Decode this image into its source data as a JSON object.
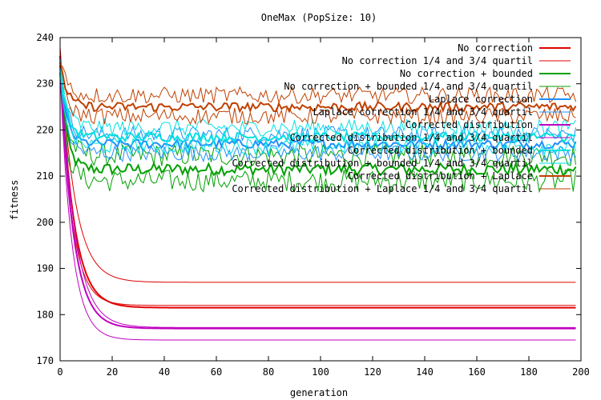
{
  "chart_data": {
    "type": "line",
    "title": "OneMax (PopSize: 10)",
    "xlabel": "generation",
    "ylabel": "fitness",
    "xlim": [
      0,
      200
    ],
    "ylim": [
      170,
      240
    ],
    "xticks": [
      0,
      20,
      40,
      60,
      80,
      100,
      120,
      140,
      160,
      180,
      200
    ],
    "yticks": [
      170,
      180,
      190,
      200,
      210,
      220,
      230,
      240
    ],
    "grid": false,
    "legend_position": "top-right",
    "series": [
      {
        "name": "No correction",
        "color": "#e00000",
        "width": 2,
        "start": 236,
        "plateau": 181.5,
        "tau": 5,
        "noise": 0
      },
      {
        "name": "No correction 1/4 and 3/4 quartil",
        "color": "#e00000",
        "width": 1,
        "start": 238,
        "plateau": 187,
        "tau": 5.5,
        "noise": 0
      },
      {
        "name": "",
        "color": "#e00000",
        "width": 1,
        "start": 234,
        "plateau": 182,
        "tau": 4.5,
        "noise": 0
      },
      {
        "name": "No correction + bounded",
        "color": "#00a000",
        "width": 2,
        "start": 232,
        "plateau": 211.5,
        "tau": 2.5,
        "noise": 1.3
      },
      {
        "name": "No correction + bounded 1/4 and 3/4 quartil",
        "color": "#00a000",
        "width": 1,
        "start": 233,
        "plateau": 214.5,
        "tau": 2.5,
        "noise": 2.4
      },
      {
        "name": "",
        "color": "#00a000",
        "width": 1,
        "start": 231,
        "plateau": 209,
        "tau": 2.5,
        "noise": 2.4
      },
      {
        "name": "Laplace correction",
        "color": "#1e90ff",
        "width": 2,
        "start": 233,
        "plateau": 217,
        "tau": 2.5,
        "noise": 1.0
      },
      {
        "name": "Laplace correction 1/4 and 3/4 quartil",
        "color": "#1e90ff",
        "width": 1,
        "start": 234,
        "plateau": 219,
        "tau": 2.5,
        "noise": 1.8
      },
      {
        "name": "",
        "color": "#1e90ff",
        "width": 1,
        "start": 232,
        "plateau": 215,
        "tau": 2.5,
        "noise": 1.8
      },
      {
        "name": "Corrected distribution",
        "color": "#c000c0",
        "width": 2,
        "start": 234,
        "plateau": 177,
        "tau": 5,
        "noise": 0
      },
      {
        "name": "Corrected distribution 1/4 and 3/4 quartil",
        "color": "#c000c0",
        "width": 1,
        "start": 236,
        "plateau": 177.2,
        "tau": 5.5,
        "noise": 0
      },
      {
        "name": "",
        "color": "#c000c0",
        "width": 1,
        "start": 232,
        "plateau": 174.5,
        "tau": 4.5,
        "noise": 0
      },
      {
        "name": "Corrected distribution + bounded",
        "color": "#00e0e0",
        "width": 2,
        "start": 234,
        "plateau": 218.5,
        "tau": 2.5,
        "noise": 1.0
      },
      {
        "name": "Corrected distribution + bounded 1/4 and 3/4 quartil",
        "color": "#00e0e0",
        "width": 1,
        "start": 235,
        "plateau": 220.5,
        "tau": 2.5,
        "noise": 1.8
      },
      {
        "name": "",
        "color": "#00e0e0",
        "width": 1,
        "start": 233,
        "plateau": 216.5,
        "tau": 2.5,
        "noise": 1.8
      },
      {
        "name": "Corrected distribution + Laplace",
        "color": "#c04000",
        "width": 2,
        "start": 235,
        "plateau": 225,
        "tau": 2.5,
        "noise": 1.0
      },
      {
        "name": "Corrected distribution + Laplace 1/4 and 3/4 quartil",
        "color": "#c04000",
        "width": 1,
        "start": 236,
        "plateau": 227.5,
        "tau": 2.5,
        "noise": 1.8
      },
      {
        "name": "",
        "color": "#c04000",
        "width": 1,
        "start": 234,
        "plateau": 223,
        "tau": 2.5,
        "noise": 1.8
      }
    ]
  }
}
